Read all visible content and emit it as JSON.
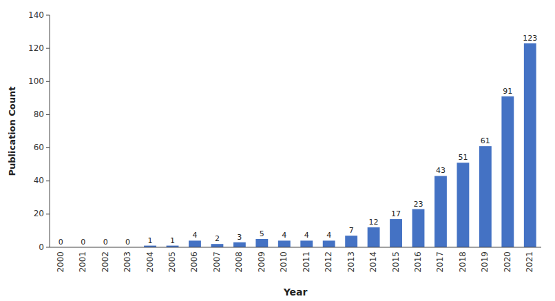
{
  "chart_data": {
    "type": "bar",
    "categories": [
      "2000",
      "2001",
      "2002",
      "2003",
      "2004",
      "2005",
      "2006",
      "2007",
      "2008",
      "2009",
      "2010",
      "2011",
      "2012",
      "2013",
      "2014",
      "2015",
      "2016",
      "2017",
      "2018",
      "2019",
      "2020",
      "2021"
    ],
    "values": [
      0,
      0,
      0,
      0,
      1,
      1,
      4,
      2,
      3,
      5,
      4,
      4,
      4,
      7,
      12,
      17,
      23,
      43,
      51,
      61,
      91,
      123
    ],
    "color": "#4472C4",
    "xlabel": "Year",
    "ylabel": "Publication Count",
    "ylim": [
      0,
      140
    ],
    "yticks": [
      0,
      20,
      40,
      60,
      80,
      100,
      120,
      140
    ],
    "grid": false,
    "data_labels": true
  }
}
